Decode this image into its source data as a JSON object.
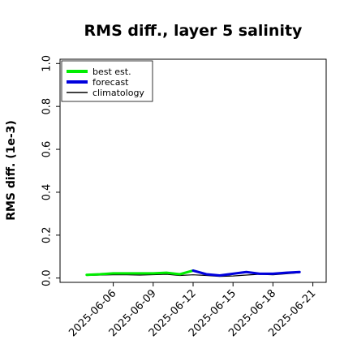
{
  "chart_data": {
    "type": "line",
    "title": "RMS diff., layer 5 salinity",
    "xlabel": "",
    "ylabel": "RMS diff. (1e-3)",
    "ylim": [
      -0.02,
      1.02
    ],
    "xlim": [
      "2025-06-02",
      "2025-06-22"
    ],
    "yticks": [
      0.0,
      0.2,
      0.4,
      0.6,
      0.8,
      1.0
    ],
    "ytick_labels": [
      "0.0",
      "0.2",
      "0.4",
      "0.6",
      "0.8",
      "1.0"
    ],
    "xticks": [
      "2025-06-06",
      "2025-06-09",
      "2025-06-12",
      "2025-06-15",
      "2025-06-18",
      "2025-06-21"
    ],
    "xtick_labels": [
      "2025-06-06",
      "2025-06-09",
      "2025-06-12",
      "2025-06-15",
      "2025-06-18",
      "2025-06-21"
    ],
    "highlight_tick": "2025-06-12",
    "highlight_color": "#2a8a2a",
    "grid": false,
    "legend_position": "top-left",
    "series": [
      {
        "name": "best est.",
        "color": "#00ee00",
        "x": [
          "2025-06-04",
          "2025-06-05",
          "2025-06-06",
          "2025-06-07",
          "2025-06-08",
          "2025-06-09",
          "2025-06-10",
          "2025-06-11",
          "2025-06-12"
        ],
        "y": [
          0.015,
          0.018,
          0.022,
          0.022,
          0.022,
          0.022,
          0.025,
          0.018,
          0.035
        ]
      },
      {
        "name": "forecast",
        "color": "#0000dd",
        "x": [
          "2025-06-12",
          "2025-06-13",
          "2025-06-14",
          "2025-06-15",
          "2025-06-16",
          "2025-06-17",
          "2025-06-18",
          "2025-06-19",
          "2025-06-20"
        ],
        "y": [
          0.035,
          0.018,
          0.012,
          0.02,
          0.028,
          0.02,
          0.02,
          0.025,
          0.028
        ]
      },
      {
        "name": "climatology",
        "color": "#000000",
        "x": [
          "2025-06-04",
          "2025-06-05",
          "2025-06-06",
          "2025-06-07",
          "2025-06-08",
          "2025-06-09",
          "2025-06-10",
          "2025-06-11",
          "2025-06-12",
          "2025-06-13",
          "2025-06-14",
          "2025-06-15",
          "2025-06-16",
          "2025-06-17",
          "2025-06-18",
          "2025-06-19",
          "2025-06-20"
        ],
        "y": [
          0.012,
          0.014,
          0.015,
          0.015,
          0.014,
          0.016,
          0.018,
          0.012,
          0.015,
          0.012,
          0.008,
          0.01,
          0.014,
          0.018,
          0.015,
          0.02,
          0.025
        ]
      }
    ]
  }
}
